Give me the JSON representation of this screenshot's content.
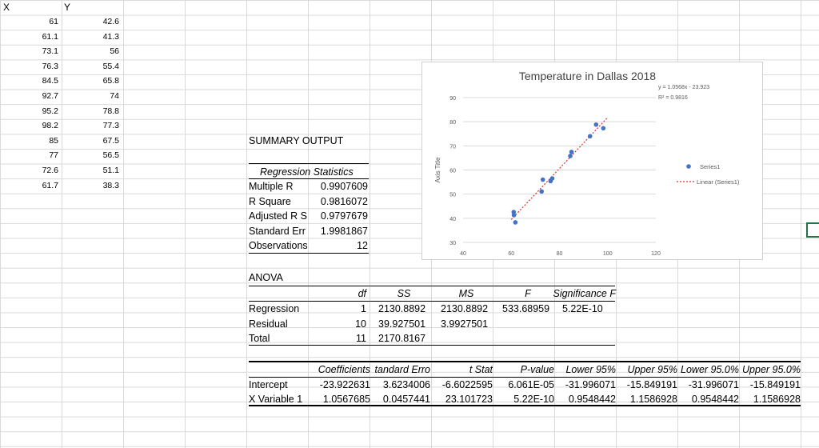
{
  "column_headers": [
    "X",
    "Y"
  ],
  "data_rows": [
    {
      "x": "61",
      "y": "42.6"
    },
    {
      "x": "61.1",
      "y": "41.3"
    },
    {
      "x": "73.1",
      "y": "56"
    },
    {
      "x": "76.3",
      "y": "55.4"
    },
    {
      "x": "84.5",
      "y": "65.8"
    },
    {
      "x": "92.7",
      "y": "74"
    },
    {
      "x": "95.2",
      "y": "78.8"
    },
    {
      "x": "98.2",
      "y": "77.3"
    },
    {
      "x": "85",
      "y": "67.5"
    },
    {
      "x": "77",
      "y": "56.5"
    },
    {
      "x": "72.6",
      "y": "51.1"
    },
    {
      "x": "61.7",
      "y": "38.3"
    }
  ],
  "summary": {
    "title": "SUMMARY OUTPUT",
    "regression_stats_title": "Regression Statistics",
    "stats": [
      {
        "label": "Multiple R",
        "value": "0.9907609"
      },
      {
        "label": "R Square",
        "value": "0.9816072"
      },
      {
        "label": "Adjusted R S",
        "value": "0.9797679"
      },
      {
        "label": "Standard Err",
        "value": "1.9981867"
      },
      {
        "label": "Observations",
        "value": "12"
      }
    ]
  },
  "anova": {
    "title": "ANOVA",
    "headers": [
      "df",
      "SS",
      "MS",
      "F",
      "Significance F"
    ],
    "rows": [
      {
        "label": "Regression",
        "df": "1",
        "ss": "2130.8892",
        "ms": "2130.8892",
        "f": "533.68959",
        "sig": "5.22E-10"
      },
      {
        "label": "Residual",
        "df": "10",
        "ss": "39.927501",
        "ms": "3.9927501",
        "f": "",
        "sig": ""
      },
      {
        "label": "Total",
        "df": "11",
        "ss": "2170.8167",
        "ms": "",
        "f": "",
        "sig": ""
      }
    ]
  },
  "coefficients": {
    "headers": [
      "Coefficients",
      "tandard Erro",
      "t Stat",
      "P-value",
      "Lower 95%",
      "Upper 95%",
      "Lower 95.0%",
      "Upper 95.0%"
    ],
    "rows": [
      {
        "label": "Intercept",
        "values": [
          "-23.922631",
          "3.6234006",
          "-6.6022595",
          "6.061E-05",
          "-31.996071",
          "-15.849191",
          "-31.996071",
          "-15.849191"
        ]
      },
      {
        "label": "X Variable 1",
        "values": [
          "1.0567685",
          "0.0457441",
          "23.101723",
          "5.22E-10",
          "0.9548442",
          "1.1586928",
          "0.9548442",
          "1.1586928"
        ]
      }
    ]
  },
  "chart_data": {
    "type": "scatter",
    "title": "Temperature in Dallas 2018",
    "ylabel": "Axis Title",
    "xlabel": "",
    "xlim": [
      40,
      120
    ],
    "ylim": [
      30,
      90
    ],
    "xticks": [
      "40",
      "60",
      "80",
      "100",
      "120"
    ],
    "yticks": [
      "30",
      "40",
      "50",
      "60",
      "70",
      "80",
      "90"
    ],
    "series": [
      {
        "name": "Series1",
        "points": [
          [
            61,
            42.6
          ],
          [
            61.1,
            41.3
          ],
          [
            73.1,
            56
          ],
          [
            76.3,
            55.4
          ],
          [
            84.5,
            65.8
          ],
          [
            92.7,
            74
          ],
          [
            95.2,
            78.8
          ],
          [
            98.2,
            77.3
          ],
          [
            85,
            67.5
          ],
          [
            77,
            56.5
          ],
          [
            72.6,
            51.1
          ],
          [
            61.7,
            38.3
          ]
        ]
      }
    ],
    "trendline": {
      "name": "Linear (Series1)",
      "slope": 1.0568,
      "intercept": -23.923,
      "equation": "y = 1.0568x - 23.923",
      "r2": "R² = 0.9816",
      "x_range": [
        60,
        100
      ]
    },
    "grid": true,
    "legend": "right",
    "colors": {
      "series": "#4472c4",
      "trend": "#e03030"
    }
  }
}
